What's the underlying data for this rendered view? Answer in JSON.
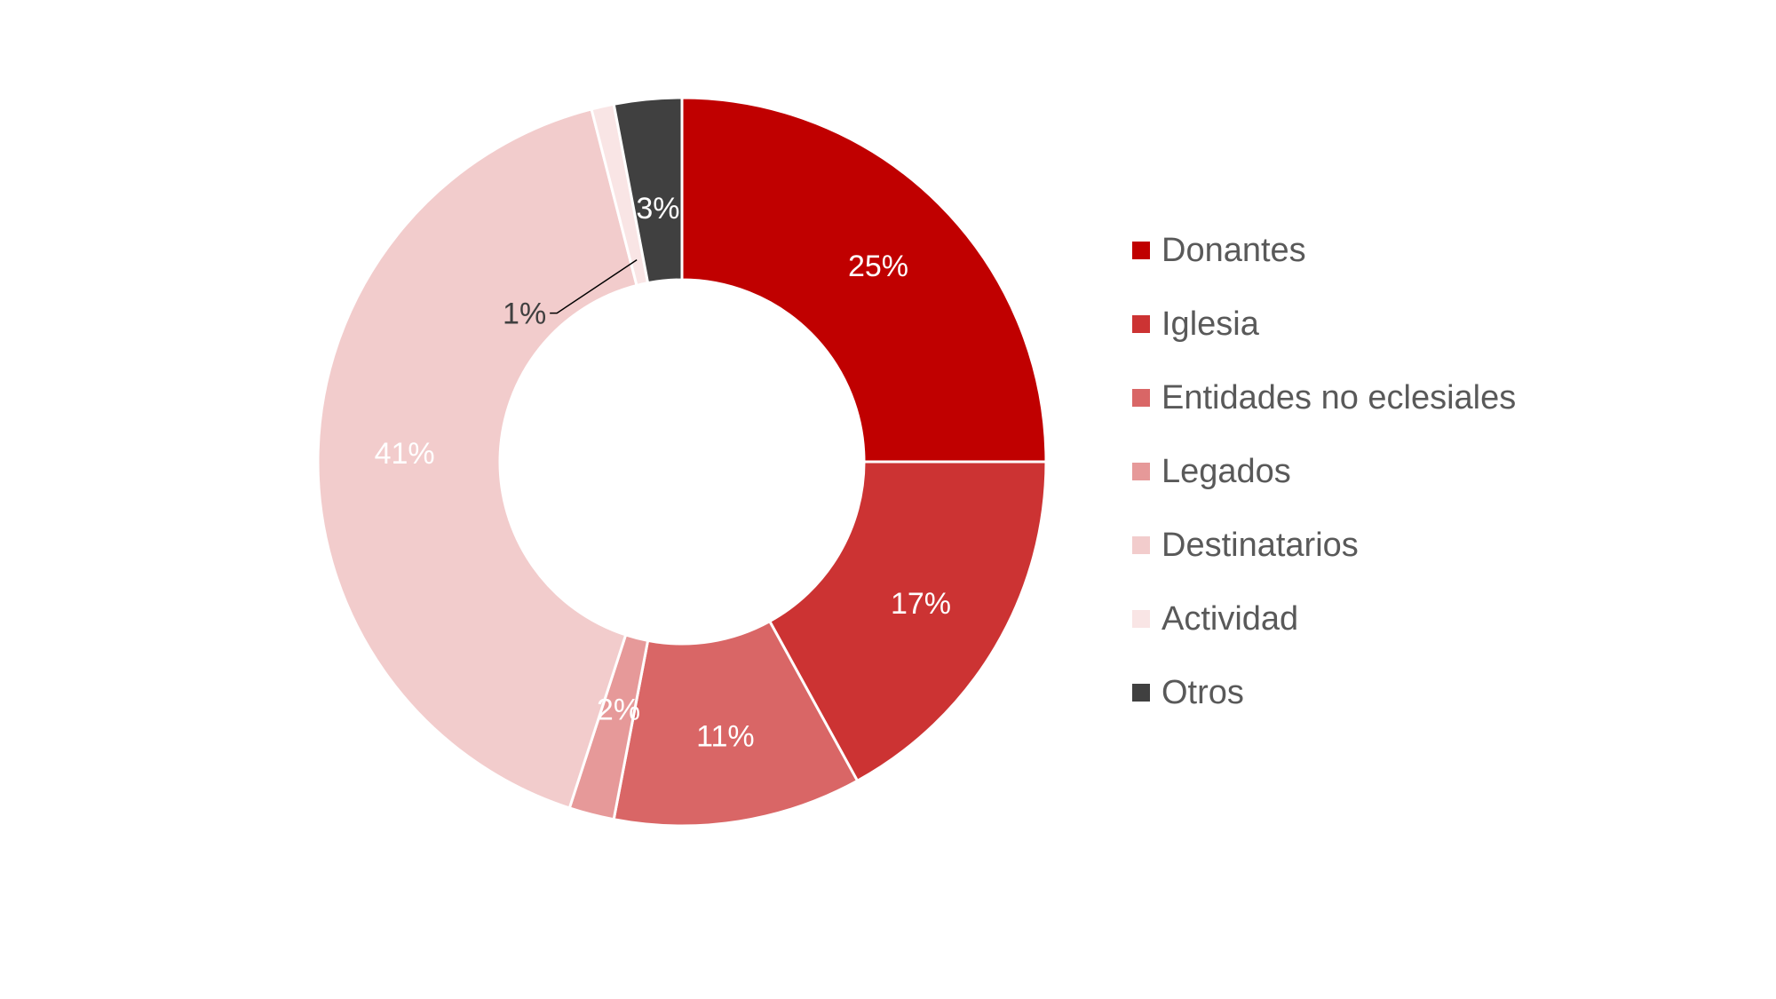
{
  "chart_data": {
    "type": "pie",
    "donut": true,
    "title": "",
    "legend_position": "right",
    "start_angle_deg": 0,
    "direction": "clockwise",
    "series": [
      {
        "name": "Donantes",
        "value": 25,
        "label": "25%",
        "color": "#C00000",
        "label_color": "#FFFFFF"
      },
      {
        "name": "Iglesia",
        "value": 17,
        "label": "17%",
        "color": "#CC3333",
        "label_color": "#FFFFFF"
      },
      {
        "name": "Entidades no eclesiales",
        "value": 11,
        "label": "11%",
        "color": "#D96666",
        "label_color": "#FFFFFF"
      },
      {
        "name": "Legados",
        "value": 2,
        "label": "2%",
        "color": "#E69999",
        "label_color": "#FFFFFF"
      },
      {
        "name": "Destinatarios",
        "value": 41,
        "label": "41%",
        "color": "#F2CCCC",
        "label_color": "#FFFFFF"
      },
      {
        "name": "Actividad",
        "value": 1,
        "label": "1%",
        "color": "#F9E5E5",
        "label_color": "#404040"
      },
      {
        "name": "Otros",
        "value": 3,
        "label": "3%",
        "color": "#404040",
        "label_color": "#FFFFFF"
      }
    ]
  }
}
